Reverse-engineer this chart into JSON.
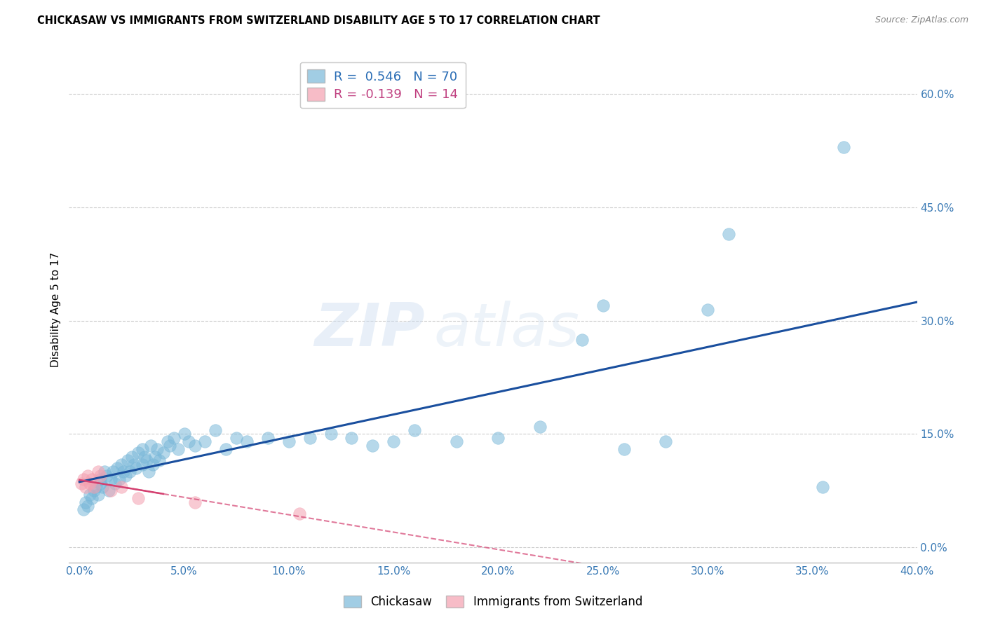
{
  "title": "CHICKASAW VS IMMIGRANTS FROM SWITZERLAND DISABILITY AGE 5 TO 17 CORRELATION CHART",
  "source": "Source: ZipAtlas.com",
  "xlabel_vals": [
    0.0,
    5.0,
    10.0,
    15.0,
    20.0,
    25.0,
    30.0,
    35.0,
    40.0
  ],
  "ylabel_vals": [
    0.0,
    15.0,
    30.0,
    45.0,
    60.0
  ],
  "xlim": [
    -0.5,
    40.0
  ],
  "ylim": [
    -2.0,
    65.0
  ],
  "ylabel": "Disability Age 5 to 17",
  "legend_label1": "Chickasaw",
  "legend_label2": "Immigrants from Switzerland",
  "r1": "0.546",
  "n1": "70",
  "r2": "-0.139",
  "n2": "14",
  "blue_color": "#7ab8d9",
  "pink_color": "#f4a0b0",
  "line_blue": "#1a4f9e",
  "line_pink": "#d44070",
  "chickasaw_x": [
    0.2,
    0.3,
    0.4,
    0.5,
    0.6,
    0.7,
    0.8,
    0.9,
    1.0,
    1.0,
    1.1,
    1.2,
    1.3,
    1.4,
    1.5,
    1.6,
    1.7,
    1.8,
    1.9,
    2.0,
    2.1,
    2.2,
    2.3,
    2.4,
    2.5,
    2.6,
    2.7,
    2.8,
    3.0,
    3.0,
    3.1,
    3.2,
    3.3,
    3.4,
    3.5,
    3.6,
    3.7,
    3.8,
    4.0,
    4.2,
    4.3,
    4.5,
    4.7,
    5.0,
    5.2,
    5.5,
    6.0,
    6.5,
    7.0,
    7.5,
    8.0,
    9.0,
    10.0,
    11.0,
    12.0,
    13.0,
    14.0,
    15.0,
    16.0,
    18.0,
    20.0,
    22.0,
    24.0,
    25.0,
    26.0,
    28.0,
    30.0,
    31.0,
    35.5,
    36.5
  ],
  "chickasaw_y": [
    5.0,
    6.0,
    5.5,
    7.0,
    6.5,
    7.5,
    8.0,
    7.0,
    8.5,
    9.0,
    8.0,
    10.0,
    9.5,
    7.5,
    9.0,
    10.0,
    8.5,
    10.5,
    9.0,
    11.0,
    10.0,
    9.5,
    11.5,
    10.0,
    12.0,
    11.0,
    10.5,
    12.5,
    11.0,
    13.0,
    12.0,
    11.5,
    10.0,
    13.5,
    11.0,
    12.0,
    13.0,
    11.5,
    12.5,
    14.0,
    13.5,
    14.5,
    13.0,
    15.0,
    14.0,
    13.5,
    14.0,
    15.5,
    13.0,
    14.5,
    14.0,
    14.5,
    14.0,
    14.5,
    15.0,
    14.5,
    13.5,
    14.0,
    15.5,
    14.0,
    14.5,
    16.0,
    27.5,
    32.0,
    13.0,
    14.0,
    31.5,
    41.5,
    8.0,
    53.0
  ],
  "swiss_x": [
    0.1,
    0.2,
    0.3,
    0.4,
    0.5,
    0.6,
    0.7,
    0.9,
    1.0,
    1.5,
    2.0,
    2.8,
    5.5,
    10.5
  ],
  "swiss_y": [
    8.5,
    9.0,
    8.0,
    9.5,
    8.5,
    9.0,
    8.0,
    10.0,
    9.5,
    7.5,
    8.0,
    6.5,
    6.0,
    4.5
  ],
  "watermark_zip": "ZIP",
  "watermark_atlas": "atlas",
  "grid_color": "#cccccc"
}
